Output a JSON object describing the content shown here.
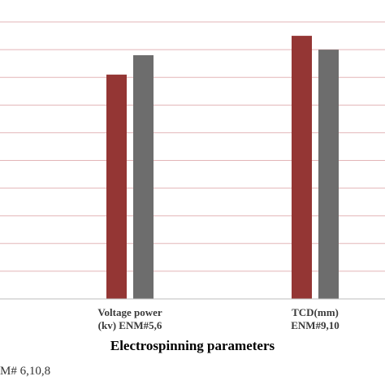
{
  "chart_data": {
    "type": "bar",
    "categories": [
      "Voltage power\n(kv) ENM#5,6",
      "TCD(mm)\nENM#9,10"
    ],
    "series": [
      {
        "color": "#943634",
        "values": [
          8.1,
          9.5
        ]
      },
      {
        "color": "#6d6d6d",
        "values": [
          8.8,
          9.0
        ]
      }
    ],
    "ylim": [
      0,
      10.5
    ],
    "gridlines": [
      1,
      2,
      3,
      4,
      5,
      6,
      7,
      8,
      9,
      10
    ],
    "grid": true,
    "grid_color": "#e3b5b7",
    "xlabel": "Electrospinning parameters",
    "footnote": "M# 6,10,8"
  }
}
